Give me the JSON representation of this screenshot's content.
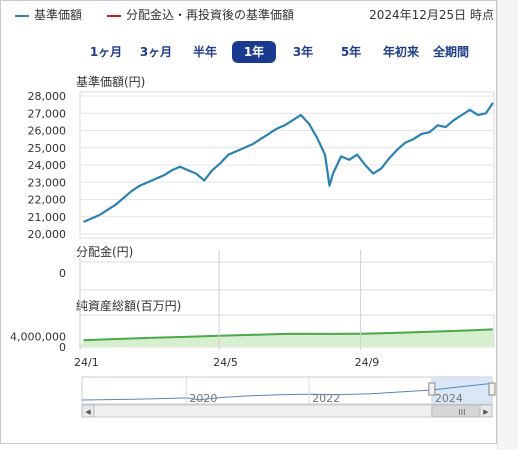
{
  "legend": [
    {
      "label": "基準価額",
      "color": "#2a82b3"
    },
    {
      "label": "分配金込・再投資後の基準価額",
      "color": "#b3242a"
    }
  ],
  "timestamp": "2024年12月25日 時点",
  "ranges": [
    {
      "label": "1ヶ月",
      "selected": false
    },
    {
      "label": "3ヶ月",
      "selected": false
    },
    {
      "label": "半年",
      "selected": false
    },
    {
      "label": "1年",
      "selected": true
    },
    {
      "label": "3年",
      "selected": false
    },
    {
      "label": "5年",
      "selected": false
    },
    {
      "label": "年初来",
      "selected": false
    },
    {
      "label": "全期間",
      "selected": false
    }
  ],
  "chart_data": [
    {
      "type": "line",
      "ylabel": "基準価額(円)",
      "ylim": [
        20000,
        28000
      ],
      "yticks": [
        20000,
        21000,
        22000,
        23000,
        24000,
        25000,
        26000,
        27000,
        28000
      ],
      "ytick_labels": [
        "20,000",
        "21,000",
        "22,000",
        "23,000",
        "24,000",
        "25,000",
        "26,000",
        "27,000",
        "28,000"
      ],
      "grid": true,
      "series": [
        {
          "color": "#2a82b3",
          "x": [
            "2024-01-04",
            "2024-01-11",
            "2024-01-18",
            "2024-01-25",
            "2024-02-01",
            "2024-02-08",
            "2024-02-15",
            "2024-02-22",
            "2024-02-29",
            "2024-03-07",
            "2024-03-14",
            "2024-03-21",
            "2024-03-28",
            "2024-04-04",
            "2024-04-11",
            "2024-04-18",
            "2024-04-25",
            "2024-05-02",
            "2024-05-09",
            "2024-05-16",
            "2024-05-23",
            "2024-05-30",
            "2024-06-06",
            "2024-06-13",
            "2024-06-20",
            "2024-06-27",
            "2024-07-04",
            "2024-07-11",
            "2024-07-18",
            "2024-07-25",
            "2024-08-01",
            "2024-08-05",
            "2024-08-08",
            "2024-08-15",
            "2024-08-22",
            "2024-08-29",
            "2024-09-05",
            "2024-09-12",
            "2024-09-19",
            "2024-09-26",
            "2024-10-03",
            "2024-10-10",
            "2024-10-17",
            "2024-10-24",
            "2024-10-31",
            "2024-11-07",
            "2024-11-14",
            "2024-11-21",
            "2024-11-28",
            "2024-12-05",
            "2024-12-12",
            "2024-12-19",
            "2024-12-25"
          ],
          "values": [
            20700,
            20900,
            21100,
            21400,
            21700,
            22100,
            22500,
            22800,
            23000,
            23200,
            23400,
            23700,
            23900,
            23700,
            23500,
            23100,
            23700,
            24100,
            24600,
            24800,
            25000,
            25200,
            25500,
            25800,
            26100,
            26300,
            26600,
            26900,
            26400,
            25600,
            24600,
            22800,
            23500,
            24500,
            24300,
            24600,
            24000,
            23500,
            23800,
            24400,
            24900,
            25300,
            25500,
            25800,
            25900,
            26300,
            26200,
            26600,
            26900,
            27200,
            26900,
            27000,
            27600
          ]
        }
      ]
    },
    {
      "type": "bar",
      "ylabel": "分配金(円)",
      "yticks": [
        0
      ],
      "ytick_labels": [
        "0"
      ],
      "values": []
    },
    {
      "type": "area",
      "ylabel": "純資産総額(百万円)",
      "yticks": [
        0,
        4000000
      ],
      "ytick_labels": [
        "0",
        "4,000,000"
      ],
      "ylim": [
        0,
        12000000
      ],
      "series": [
        {
          "color": "#4aa84a",
          "x": [
            "2024-01-04",
            "2024-02-01",
            "2024-03-01",
            "2024-04-01",
            "2024-05-01",
            "2024-06-03",
            "2024-07-01",
            "2024-08-01",
            "2024-09-02",
            "2024-10-01",
            "2024-11-01",
            "2024-12-02",
            "2024-12-25"
          ],
          "values": [
            2500000,
            3000000,
            3400000,
            3800000,
            4200000,
            4600000,
            5000000,
            4900000,
            5000000,
            5300000,
            5700000,
            6200000,
            6600000
          ]
        }
      ]
    }
  ],
  "xticks": [
    {
      "date": "2024-01-01",
      "label": "24/1"
    },
    {
      "date": "2024-05-01",
      "label": "24/5"
    },
    {
      "date": "2024-09-01",
      "label": "24/9"
    }
  ],
  "navigator": {
    "year_labels": [
      {
        "year": 2020,
        "label": "2020"
      },
      {
        "year": 2022,
        "label": "2022"
      },
      {
        "year": 2024,
        "label": "2024"
      }
    ],
    "series": {
      "x": [
        2018.3,
        2019.0,
        2019.5,
        2020.0,
        2020.2,
        2020.6,
        2021.0,
        2021.5,
        2022.0,
        2022.5,
        2023.0,
        2023.5,
        2024.0,
        2024.5,
        2024.98
      ],
      "values": [
        10000,
        10600,
        11400,
        12200,
        10300,
        12700,
        14300,
        15600,
        16000,
        15700,
        16600,
        18600,
        20600,
        24300,
        27600
      ]
    },
    "selected_range": [
      2024.0,
      2024.98
    ],
    "scrollbar_thumb_glyph": "III"
  },
  "scroll_left_glyph": "◀",
  "scroll_right_glyph": "▶"
}
